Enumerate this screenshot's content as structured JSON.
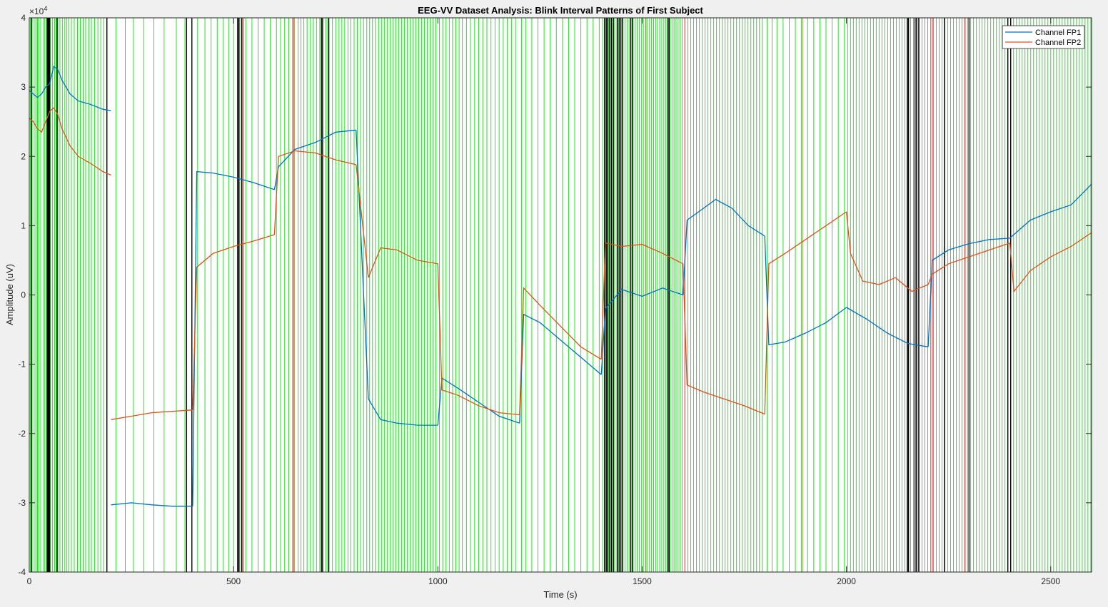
{
  "chart_data": {
    "type": "line",
    "title": "EEG-VV Dataset Analysis: Blink Interval Patterns of First Subject",
    "xlabel": "Time (s)",
    "ylabel": "Amplitude (uV)",
    "y_exponent_label": "×10",
    "y_exponent_power": "4",
    "xlim": [
      0,
      2600
    ],
    "ylim": [
      -40000,
      40000
    ],
    "xticks": [
      0,
      500,
      1000,
      1500,
      2000,
      2500
    ],
    "xtick_labels": [
      "0",
      "500",
      "1000",
      "1500",
      "2000",
      "2500"
    ],
    "yticks": [
      -40000,
      -30000,
      -20000,
      -10000,
      0,
      10000,
      20000,
      30000,
      40000
    ],
    "ytick_labels": [
      "-4",
      "-3",
      "-2",
      "-1",
      "0",
      "1",
      "2",
      "3",
      "4"
    ],
    "grid": false,
    "legend_position": "top-right",
    "series": [
      {
        "name": "Channel FP1",
        "color": "#0072BD",
        "segments": [
          {
            "x": [
              0,
              10,
              20,
              30,
              40,
              50,
              60,
              70,
              80,
              100,
              120,
              150,
              180,
              200
            ],
            "y": [
              29500,
              29000,
              28500,
              29000,
              30000,
              30500,
              33000,
              32500,
              31000,
              29000,
              28000,
              27500,
              26800,
              26600
            ]
          },
          {
            "x": [
              200,
              250,
              300,
              350,
              400
            ],
            "y": [
              -30300,
              -30000,
              -30300,
              -30500,
              -30500
            ]
          },
          {
            "x": [
              400,
              410,
              450,
              500,
              550,
              600
            ],
            "y": [
              -30500,
              17800,
              17600,
              17000,
              16200,
              15200
            ]
          },
          {
            "x": [
              600,
              610,
              650,
              700,
              750,
              800
            ],
            "y": [
              15200,
              18500,
              21000,
              22000,
              23500,
              23800
            ]
          },
          {
            "x": [
              800,
              830,
              860,
              900,
              950,
              1000
            ],
            "y": [
              23800,
              -15000,
              -18000,
              -18500,
              -18800,
              -18800
            ]
          },
          {
            "x": [
              1000,
              1010,
              1050,
              1100,
              1150,
              1200
            ],
            "y": [
              -18800,
              -12000,
              -13500,
              -15500,
              -17500,
              -18500
            ]
          },
          {
            "x": [
              1200,
              1210,
              1250,
              1300,
              1350,
              1400
            ],
            "y": [
              -18500,
              -2800,
              -4000,
              -6500,
              -9000,
              -11500
            ]
          },
          {
            "x": [
              1400,
              1410,
              1450,
              1500,
              1550,
              1600
            ],
            "y": [
              -11500,
              -2000,
              800,
              -200,
              1000,
              0
            ]
          },
          {
            "x": [
              1600,
              1610,
              1650,
              1680,
              1720,
              1760,
              1800
            ],
            "y": [
              0,
              10800,
              12500,
              13800,
              12500,
              10000,
              8500
            ]
          },
          {
            "x": [
              1800,
              1810,
              1850,
              1900,
              1950,
              2000
            ],
            "y": [
              8500,
              -7200,
              -6800,
              -5500,
              -4000,
              -1800
            ]
          },
          {
            "x": [
              2000,
              2050,
              2100,
              2150,
              2200
            ],
            "y": [
              -1800,
              -3500,
              -5500,
              -7000,
              -7500
            ]
          },
          {
            "x": [
              2200,
              2210,
              2250,
              2300,
              2350,
              2400
            ],
            "y": [
              -7500,
              5000,
              6500,
              7400,
              8000,
              8200
            ]
          },
          {
            "x": [
              2400,
              2450,
              2500,
              2550,
              2600
            ],
            "y": [
              8200,
              10800,
              12000,
              13000,
              16000
            ]
          }
        ]
      },
      {
        "name": "Channel FP2",
        "color": "#D95319",
        "segments": [
          {
            "x": [
              0,
              10,
              20,
              30,
              40,
              50,
              60,
              70,
              80,
              100,
              120,
              150,
              180,
              200
            ],
            "y": [
              25500,
              25000,
              24000,
              23500,
              25000,
              26500,
              27000,
              26000,
              24000,
              21500,
              20000,
              19000,
              17800,
              17300
            ]
          },
          {
            "x": [
              200,
              250,
              300,
              350,
              400
            ],
            "y": [
              -18000,
              -17500,
              -17000,
              -16800,
              -16600
            ]
          },
          {
            "x": [
              400,
              410,
              450,
              500,
              550,
              600
            ],
            "y": [
              -16600,
              4000,
              6000,
              7000,
              7800,
              8700
            ]
          },
          {
            "x": [
              600,
              610,
              650,
              700,
              750,
              800
            ],
            "y": [
              8700,
              20000,
              20800,
              20500,
              19500,
              18800
            ]
          },
          {
            "x": [
              800,
              830,
              860,
              900,
              950,
              1000
            ],
            "y": [
              18800,
              2500,
              6800,
              6500,
              5000,
              4500
            ]
          },
          {
            "x": [
              1000,
              1010,
              1050,
              1100,
              1150,
              1200
            ],
            "y": [
              4500,
              -13700,
              -14500,
              -16000,
              -17000,
              -17300
            ]
          },
          {
            "x": [
              1200,
              1210,
              1250,
              1300,
              1350,
              1400
            ],
            "y": [
              -17300,
              1000,
              -1500,
              -4500,
              -7500,
              -9300
            ]
          },
          {
            "x": [
              1400,
              1410,
              1450,
              1500,
              1550,
              1600
            ],
            "y": [
              -9300,
              7500,
              7000,
              7300,
              6000,
              4500
            ]
          },
          {
            "x": [
              1600,
              1610,
              1650,
              1700,
              1750,
              1800
            ],
            "y": [
              4500,
              -13000,
              -14000,
              -15000,
              -16000,
              -17200
            ]
          },
          {
            "x": [
              1800,
              1810,
              1850,
              1900,
              1950,
              2000
            ],
            "y": [
              -17200,
              4500,
              6000,
              8000,
              10000,
              12000
            ]
          },
          {
            "x": [
              2000,
              2010,
              2040,
              2080,
              2120,
              2160,
              2200
            ],
            "y": [
              12000,
              6000,
              2000,
              1500,
              2500,
              500,
              1500
            ]
          },
          {
            "x": [
              2200,
              2210,
              2250,
              2300,
              2350,
              2400
            ],
            "y": [
              1500,
              3000,
              4500,
              5500,
              6500,
              7500
            ]
          },
          {
            "x": [
              2400,
              2410,
              2450,
              2500,
              2550,
              2600
            ],
            "y": [
              7500,
              500,
              3500,
              5500,
              7000,
              9000
            ]
          }
        ]
      }
    ],
    "background_color": "#ffffff",
    "figure_color": "#f0f0f0",
    "axis_color": "#262626",
    "interval_markers": {
      "blink_color": "#00dd00",
      "dense_color": "#000000",
      "gap_color": "#ff8080",
      "blink_times": [
        3,
        7,
        12,
        16,
        20,
        23,
        28,
        35,
        38,
        42,
        47,
        52,
        57,
        62,
        66,
        70,
        75,
        81,
        87,
        92,
        96,
        103,
        110,
        118,
        125,
        132,
        138,
        146,
        152,
        160,
        168,
        175,
        182,
        190,
        212,
        235,
        255,
        280,
        305,
        330,
        360,
        381,
        412,
        430,
        445,
        460,
        475,
        488,
        500,
        515,
        530,
        545,
        560,
        575,
        590,
        605,
        615,
        625,
        635,
        648,
        658,
        665,
        672,
        680,
        688,
        695,
        703,
        711,
        718,
        726,
        734,
        742,
        750,
        758,
        765,
        772,
        780,
        787,
        795,
        803,
        811,
        818,
        826,
        833,
        840,
        847,
        855,
        862,
        869,
        876,
        883,
        890,
        897,
        904,
        911,
        918,
        925,
        932,
        939,
        946,
        953,
        960,
        967,
        974,
        981,
        988,
        995,
        1004,
        1012,
        1020,
        1028,
        1036,
        1044,
        1052,
        1060,
        1070,
        1080,
        1090,
        1100,
        1110,
        1120,
        1130,
        1140,
        1150,
        1160,
        1170,
        1180,
        1190,
        1205,
        1215,
        1230,
        1245,
        1260,
        1275,
        1290,
        1305,
        1320,
        1335,
        1350,
        1365,
        1380,
        1395,
        1403,
        1408,
        1413,
        1418,
        1423,
        1428,
        1433,
        1438,
        1443,
        1448,
        1453,
        1458,
        1463,
        1468,
        1473,
        1478,
        1483,
        1488,
        1493,
        1498,
        1503,
        1508,
        1513,
        1518,
        1523,
        1528,
        1533,
        1538,
        1543,
        1548,
        1553,
        1558,
        1563,
        1568,
        1573,
        1578,
        1583,
        1588,
        1593,
        1598,
        1605,
        1612,
        1619,
        1626,
        1633,
        1640,
        1647,
        1654,
        1661,
        1668,
        1675,
        1682,
        1689,
        1696,
        1703,
        1710,
        1717,
        1724,
        1731,
        1738,
        1745,
        1752,
        1759,
        1766,
        1773,
        1780,
        1787,
        1794,
        1806,
        1818,
        1830,
        1845,
        1860,
        1875,
        1890,
        1905,
        1920,
        1935,
        1950,
        1965,
        1980,
        1995,
        2003,
        2010,
        2017,
        2024,
        2031,
        2038,
        2045,
        2052,
        2059,
        2066,
        2073,
        2080,
        2087,
        2094,
        2101,
        2108,
        2115,
        2122,
        2129,
        2136,
        2143,
        2150,
        2157,
        2164,
        2171,
        2178,
        2185,
        2192,
        2199,
        2206,
        2213,
        2220,
        2227,
        2234,
        2241,
        2248,
        2255,
        2262,
        2269,
        2276,
        2283,
        2290,
        2297,
        2304,
        2311,
        2318,
        2325,
        2332,
        2339,
        2346,
        2353,
        2360,
        2367,
        2374,
        2381,
        2388,
        2395,
        2402,
        2409,
        2416,
        2423,
        2430,
        2437,
        2444,
        2451,
        2458,
        2465,
        2472,
        2479,
        2486,
        2493,
        2500,
        2507,
        2514,
        2521,
        2528,
        2535,
        2542,
        2549,
        2556,
        2563,
        2570,
        2577,
        2584,
        2591,
        2598
      ],
      "dense_times": [
        5,
        44,
        46,
        48,
        50,
        68,
        190,
        385,
        398,
        510,
        513,
        520,
        715,
        718,
        732,
        1408,
        1412,
        1415,
        1420,
        1425,
        1430,
        1440,
        1444,
        1448,
        1452,
        1472,
        1476,
        1563,
        1566,
        2149,
        2152,
        2168,
        2172,
        2177,
        2240,
        2300,
        2395,
        2402
      ],
      "gap_ranges": [
        [
          518,
          526
        ],
        [
          643,
          650
        ],
        [
          1508,
          1511
        ],
        [
          1603,
          1606
        ],
        [
          1892,
          1894
        ],
        [
          2208,
          2212
        ],
        [
          2288,
          2292
        ]
      ]
    }
  }
}
